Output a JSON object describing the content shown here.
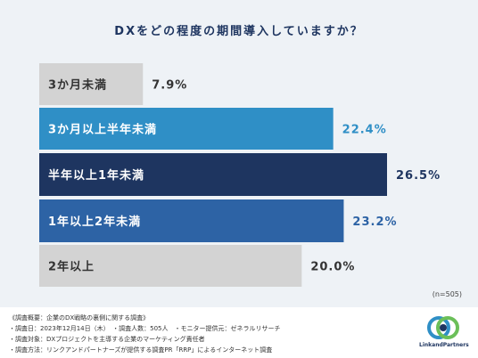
{
  "chart_data": {
    "type": "bar",
    "orientation": "horizontal",
    "title": "DXをどの程度の期間導入していますか？",
    "categories": [
      "3か月未満",
      "3か月以上半年未満",
      "半年以上1年未満",
      "1年以上2年未満",
      "2年以上"
    ],
    "values": [
      7.9,
      22.4,
      26.5,
      23.2,
      20.0
    ],
    "value_labels": [
      "7.9%",
      "22.4%",
      "26.5%",
      "23.2%",
      "20.0%"
    ],
    "unit": "%",
    "xlim": [
      0,
      26.5
    ],
    "grid": false,
    "legend": "none",
    "colors": [
      "#d3d3d3",
      "#2f8fc6",
      "#1e3560",
      "#2d63a5",
      "#d3d3d3"
    ],
    "label_colors": [
      "#333333",
      "#ffffff",
      "#ffffff",
      "#ffffff",
      "#333333"
    ],
    "value_colors": [
      "#333333",
      "#2f8fc6",
      "#1e3560",
      "#2d63a5",
      "#333333"
    ],
    "sample_note": "(n=505)"
  },
  "notes": [
    "《調査概要：企業のDX戦略の裏側に関する調査》",
    "・調査日：2023年12月14日（木）　・調査人数：505人　・モニター提供元：ゼネラルリサーチ",
    "・調査対象：DXプロジェクトを主導する企業のマーケティング責任者",
    "・調査方法：リンクアンドパートナーズが提供する調査PR「RRP」によるインターネット調査"
  ],
  "logo": {
    "text": "LinkandPartners",
    "colors": [
      "#2f8fc6",
      "#6bbf59",
      "#1e3560"
    ]
  }
}
